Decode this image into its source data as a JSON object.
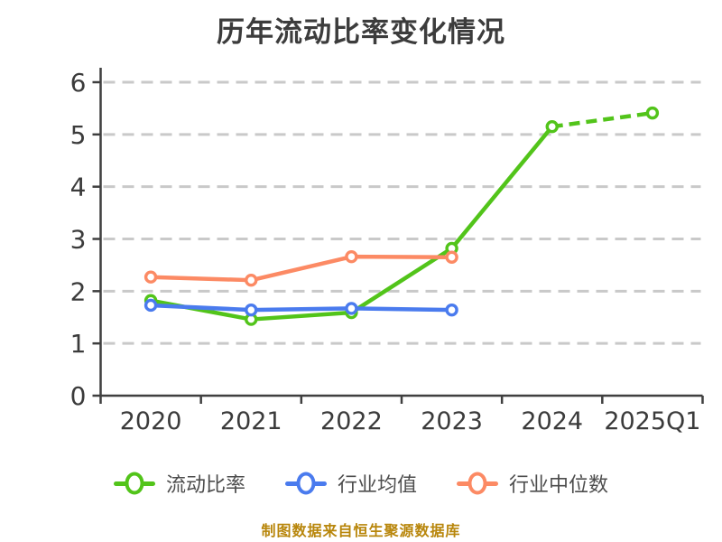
{
  "header": {
    "title": "历年流动比率变化情况"
  },
  "footer": {
    "caption": "制图数据来自恒生聚源数据库",
    "caption_color": "#b8860b"
  },
  "chart_data": {
    "type": "line",
    "title": "历年流动比率变化情况",
    "categories": [
      "2020",
      "2021",
      "2022",
      "2023",
      "2024",
      "2025Q1"
    ],
    "series": [
      {
        "name": "流动比率",
        "color": "#52c41a",
        "values": [
          1.82,
          1.46,
          1.59,
          2.82,
          5.15,
          5.41
        ],
        "marker": "circle-white-fill",
        "last_segment_dashed": true
      },
      {
        "name": "行业均值",
        "color": "#4a7bee",
        "values": [
          1.73,
          1.64,
          1.67,
          1.64,
          null,
          null
        ],
        "marker": "circle-white-fill",
        "last_segment_dashed": false
      },
      {
        "name": "行业中位数",
        "color": "#fc8a64",
        "values": [
          2.27,
          2.21,
          2.66,
          2.65,
          null,
          null
        ],
        "marker": "circle-white-fill",
        "last_segment_dashed": false
      }
    ],
    "ylim": [
      0,
      6
    ],
    "yticks": [
      0,
      1,
      2,
      3,
      4,
      5,
      6
    ],
    "grid": {
      "horizontal": true,
      "style": "dashed",
      "color": "#c9c9c9"
    },
    "axis_color": "#3f3f3f",
    "tick_label_color": "#3b3b3b",
    "legend_position": "bottom"
  }
}
